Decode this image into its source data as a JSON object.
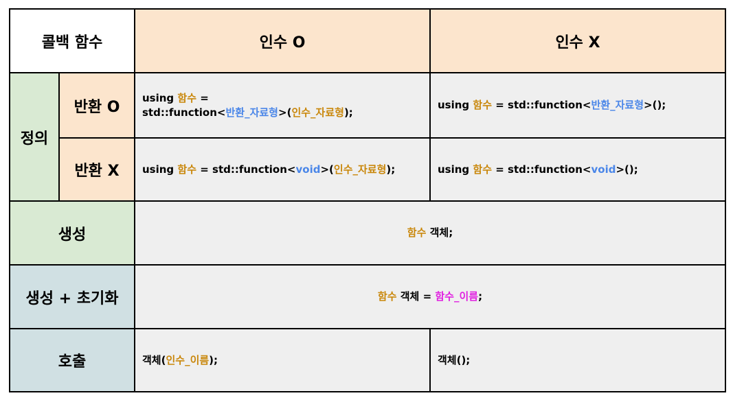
{
  "header": {
    "corner": "콜백 함수",
    "col_with_args": "인수 O",
    "col_no_args": "인수 X"
  },
  "rows": {
    "definition": "정의",
    "return_yes": "반환 O",
    "return_no": "반환 X",
    "create": "생성",
    "create_init": "생성 + 초기화",
    "call": "호출"
  },
  "code": {
    "def_ret_args": {
      "using": "using ",
      "func": "함수",
      "eq": " =",
      "std": "std::function<",
      "ret_type": "반환_자료형",
      "mid": ">(",
      "arg_type": "인수_자료형",
      "end": ");"
    },
    "def_ret_noargs": {
      "using": "using ",
      "func": "함수",
      "std": " = std::function<",
      "ret_type": "반환_자료형",
      "end": ">();"
    },
    "def_void_args": {
      "using": "using ",
      "func": "함수",
      "std": " = std::function<",
      "void": "void",
      "mid": ">(",
      "arg_type": "인수_자료형",
      "end": ");"
    },
    "def_void_noargs": {
      "using": "using ",
      "func": "함수",
      "std": " = std::function<",
      "void": "void",
      "end": ">();"
    },
    "create": {
      "func": "함수",
      "rest": " 객체;"
    },
    "create_init": {
      "func": "함수",
      "mid": " 객체 = ",
      "name": "함수_이름",
      "end": ";"
    },
    "call_args": {
      "obj": "객체(",
      "arg": "인수_이름",
      "end": ");"
    },
    "call_noargs": {
      "text": "객체();"
    }
  },
  "colors": {
    "peach": "#fce5cd",
    "green": "#d9ead3",
    "blue_gray": "#d0e0e3",
    "gray": "#efefef",
    "orange_text": "#c9870b",
    "blue_text": "#4a86e8",
    "magenta_text": "#e020e0"
  }
}
